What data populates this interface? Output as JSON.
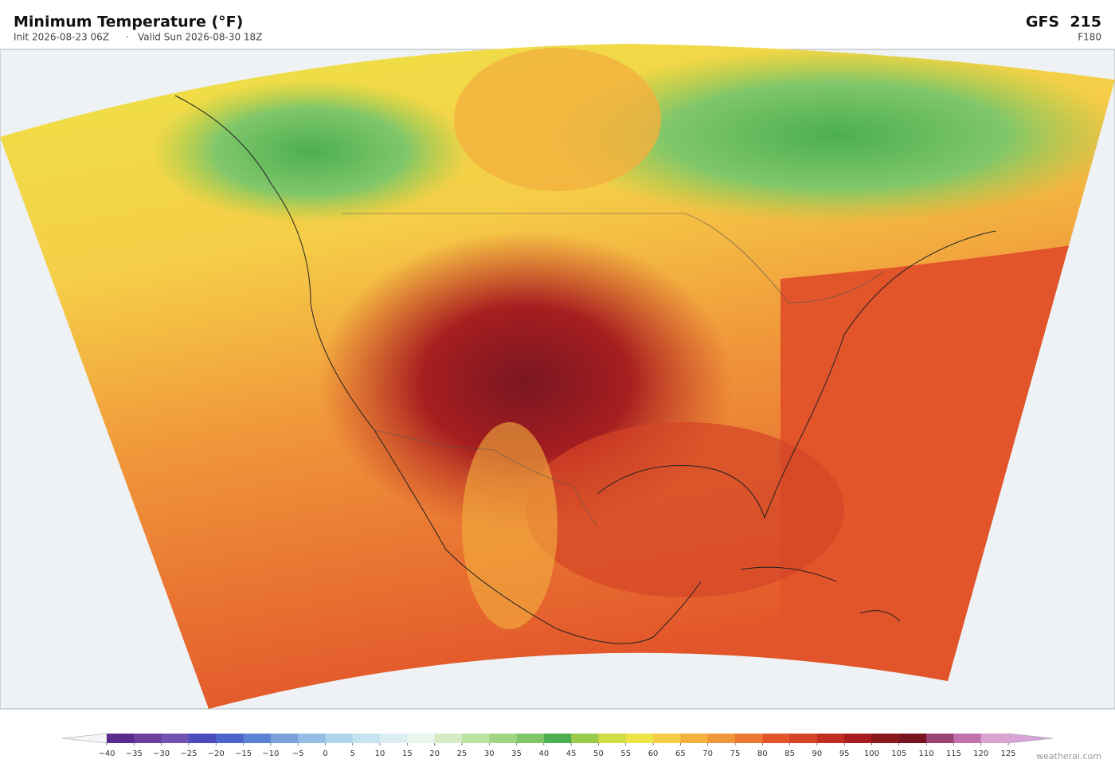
{
  "header": {
    "title": "Minimum Temperature  (°F)",
    "init": "Init 2026-08-23 06Z",
    "separator": "·",
    "valid": "Valid Sun 2026-08-30 18Z",
    "model": "GFS  215",
    "forecast_hour": "F180"
  },
  "colorbar": {
    "ticks": [
      "−40",
      "−35",
      "−30",
      "−25",
      "−20",
      "−15",
      "−10",
      "−5",
      "0",
      "5",
      "10",
      "15",
      "20",
      "25",
      "30",
      "35",
      "40",
      "45",
      "50",
      "55",
      "60",
      "65",
      "70",
      "75",
      "80",
      "85",
      "90",
      "95",
      "100",
      "105",
      "110",
      "115",
      "120",
      "125"
    ],
    "colors": [
      "#5b2c8e",
      "#6a3f9e",
      "#7152b3",
      "#4a4cbf",
      "#4c64cc",
      "#5c82d4",
      "#7ca2dc",
      "#95bee4",
      "#aed4ea",
      "#c6e4f0",
      "#dbeff2",
      "#e8f5ec",
      "#d4ebc6",
      "#bce39f",
      "#a0d683",
      "#80c76a",
      "#4caf50",
      "#9bcb4a",
      "#d2dc45",
      "#ede447",
      "#f5cd47",
      "#f3b03f",
      "#f0963a",
      "#ea7a33",
      "#e2542a",
      "#d44426",
      "#c22f22",
      "#a61e20",
      "#8c191e",
      "#781521",
      "#9a4272",
      "#c172aa",
      "#d9a3cd"
    ],
    "under_color": "#f4f5f8",
    "over_color": "#d6a4d6"
  },
  "footer": {
    "credit": "weatherai.com"
  }
}
